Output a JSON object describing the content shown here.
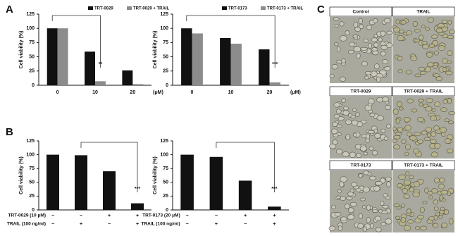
{
  "panel_labels": [
    "A",
    "B",
    "C"
  ],
  "chart_data": [
    {
      "type": "grouped-bar",
      "ylabel": "Cell viability (%)",
      "xlabel": "(μM)",
      "categories": [
        "0",
        "10",
        "20"
      ],
      "series": [
        {
          "name": "TRT-0029",
          "color": "#111111",
          "values": [
            100,
            59,
            26
          ]
        },
        {
          "name": "TRT-0029 + TRAIL",
          "color": "#8c8c8c",
          "values": [
            100,
            7,
            2
          ]
        }
      ],
      "ylim": [
        0,
        125
      ],
      "yticks": [
        0,
        25,
        50,
        75,
        100,
        125
      ],
      "annotation": "**"
    },
    {
      "type": "grouped-bar",
      "ylabel": "Cell viability (%)",
      "xlabel": "(μM)",
      "categories": [
        "0",
        "10",
        "20"
      ],
      "series": [
        {
          "name": "TRT-0173",
          "color": "#111111",
          "values": [
            100,
            83,
            63
          ]
        },
        {
          "name": "TRT-0173 + TRAIL",
          "color": "#8c8c8c",
          "values": [
            91,
            73,
            5
          ]
        }
      ],
      "ylim": [
        0,
        125
      ],
      "yticks": [
        0,
        25,
        50,
        75,
        100,
        125
      ],
      "annotation": "***"
    },
    {
      "type": "bar",
      "ylabel": "Cell viability (%)",
      "categories": [
        null,
        null,
        null,
        null
      ],
      "values": [
        100,
        99,
        70,
        12
      ],
      "color": "#111111",
      "treatments": [
        {
          "label": "TRT-0029 (10 μM)",
          "signs": [
            "−",
            "−",
            "+",
            "+"
          ]
        },
        {
          "label": "TRAIL (100 ng/ml)",
          "signs": [
            "−",
            "+",
            "−",
            "+"
          ]
        }
      ],
      "ylim": [
        0,
        125
      ],
      "yticks": [
        0,
        25,
        50,
        75,
        100,
        125
      ],
      "annotation": "***"
    },
    {
      "type": "bar",
      "ylabel": "Cell viability (%)",
      "categories": [
        null,
        null,
        null,
        null
      ],
      "values": [
        100,
        96,
        53,
        6
      ],
      "color": "#111111",
      "treatments": [
        {
          "label": "TRT-0173 (20 μM)",
          "signs": [
            "−",
            "−",
            "+",
            "+"
          ]
        },
        {
          "label": "TRAIL (100 ng/ml)",
          "signs": [
            "−",
            "+",
            "−",
            "+"
          ]
        }
      ],
      "ylim": [
        0,
        125
      ],
      "yticks": [
        0,
        25,
        50,
        75,
        100,
        125
      ],
      "annotation": "***"
    }
  ],
  "micrographs": [
    "Control",
    "TRAIL",
    "TRT-0029",
    "TRT-0029 + TRAIL",
    "TRT-0173",
    "TRT-0173 + TRAIL"
  ]
}
